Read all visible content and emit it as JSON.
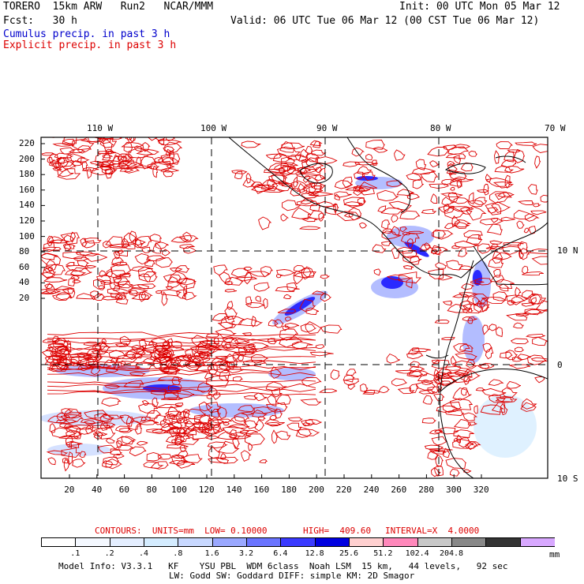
{
  "header": {
    "line1_left": "TORERO  15km ARW   Run2   NCAR/MMM",
    "line1_right": "Init: 00 UTC Mon 05 Mar 12",
    "line2_left": "Fcst:   30 h",
    "line2_right": "Valid: 06 UTC Tue 06 Mar 12 (00 CST Tue 06 Mar 12)",
    "legend_cumulus": "Cumulus precip. in past 3 h",
    "legend_explicit": "Explicit precip. in past 3 h"
  },
  "colors": {
    "cumulus": "#0000cc",
    "explicit": "#dd0000",
    "frame": "#000000"
  },
  "map": {
    "top_lon_labels": [
      "110 W",
      "100 W",
      "90 W",
      "80 W",
      "70 W"
    ],
    "right_lat_labels": [
      "10 N",
      "0",
      "10 S"
    ],
    "left_y_ticks": [
      "220",
      "200",
      "180",
      "160",
      "140",
      "120",
      "100",
      "80",
      "60",
      "40",
      "20"
    ],
    "bottom_x_ticks": [
      "20",
      "40",
      "60",
      "80",
      "100",
      "120",
      "140",
      "160",
      "180",
      "200",
      "220",
      "240",
      "260",
      "280",
      "300",
      "320"
    ]
  },
  "footer": {
    "contours_label": "CONTOURS:  UNITS=mm  LOW= 0.10000",
    "high_label": "HIGH=  409.60",
    "interval_label": "INTERVAL=X  4.0000",
    "colorbar_labels": [
      ".1",
      ".2",
      ".4",
      ".8",
      "1.6",
      "3.2",
      "6.4",
      "12.8",
      "25.6",
      "51.2",
      "102.4",
      "204.8"
    ],
    "colorbar_unit": "mm",
    "colorbar_colors": [
      "#ffffff",
      "#f4f8ff",
      "#e4eeff",
      "#d4ecff",
      "#c8d8ff",
      "#9aa8ff",
      "#6a74ff",
      "#3a3aff",
      "#0000e0",
      "#ffd0d0",
      "#ff88bb",
      "#c8c8c8",
      "#888888",
      "#333333",
      "#d8a8ff"
    ],
    "model_info_1": "Model Info: V3.3.1   KF    YSU PBL  WDM 6class  Noah LSM  15 km,   44 levels,   92 sec",
    "model_info_2": "LW: Godd SW: Goddard DIFF: simple KM: 2D Smagor"
  }
}
